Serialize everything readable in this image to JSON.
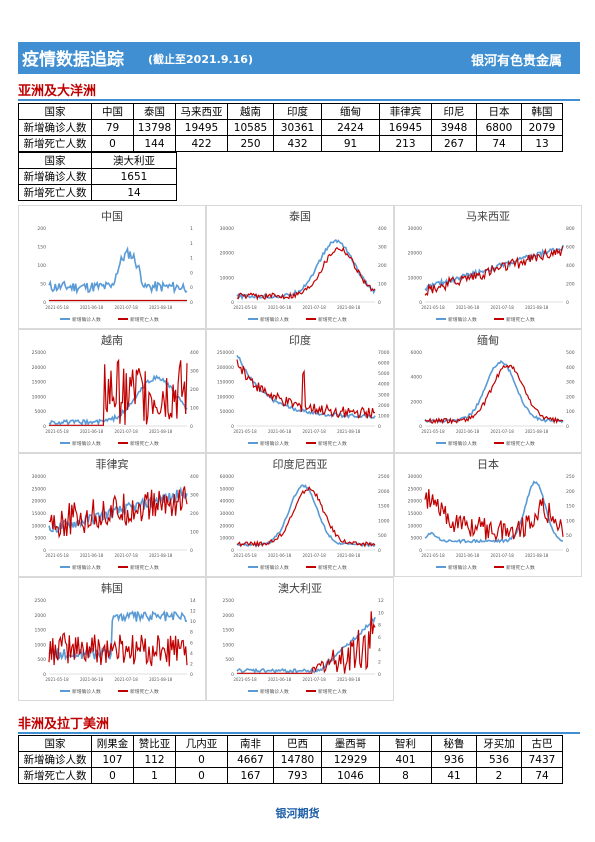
{
  "header": {
    "title": "疫情数据追踪",
    "date": "(截止至2021.9.16)",
    "brand": "银河有色贵金属"
  },
  "asia": {
    "section_title": "亚洲及大洋洲",
    "row_labels": [
      "国家",
      "新增确诊人数",
      "新增死亡人数"
    ],
    "countries": [
      "中国",
      "泰国",
      "马来西亚",
      "越南",
      "印度",
      "缅甸",
      "菲律宾",
      "印尼",
      "日本",
      "韩国"
    ],
    "cases": [
      "79",
      "13798",
      "19495",
      "10585",
      "30361",
      "2424",
      "16945",
      "3948",
      "6800",
      "2079"
    ],
    "deaths": [
      "0",
      "144",
      "422",
      "250",
      "432",
      "91",
      "213",
      "267",
      "74",
      "13"
    ],
    "extra": {
      "country": "澳大利亚",
      "cases": "1651",
      "deaths": "14"
    }
  },
  "charts": [
    {
      "title": "中国",
      "y1": [
        "200",
        "150",
        "100",
        "50",
        "0"
      ],
      "y2": [
        "1",
        "1",
        "1",
        "0",
        "0",
        "0"
      ],
      "x": [
        "2021-05-18",
        "2021-06-18",
        "2021-07-18",
        "2021-08-18"
      ]
    },
    {
      "title": "泰国",
      "y1": [
        "30000",
        "20000",
        "10000",
        "0"
      ],
      "y2": [
        "400",
        "300",
        "200",
        "100",
        "0"
      ],
      "x": [
        "2021-05-18",
        "2021-06-18",
        "2021-07-18",
        "2021-08-18"
      ]
    },
    {
      "title": "马来西亚",
      "y1": [
        "30000",
        "20000",
        "10000",
        "0"
      ],
      "y2": [
        "800",
        "600",
        "400",
        "200",
        "0"
      ],
      "x": [
        "2021-05-18",
        "2021-06-18",
        "2021-07-18",
        "2021-08-18"
      ]
    },
    {
      "title": "越南",
      "y1": [
        "25000",
        "20000",
        "15000",
        "10000",
        "5000",
        "0"
      ],
      "y2": [
        "400",
        "300",
        "200",
        "100",
        "0"
      ],
      "x": [
        "2021-05-18",
        "2021-06-18",
        "2021-07-18",
        "2021-08-18"
      ]
    },
    {
      "title": "印度",
      "y1": [
        "250000",
        "200000",
        "150000",
        "100000",
        "50000",
        "0"
      ],
      "y2": [
        "7000",
        "6000",
        "5000",
        "4000",
        "3000",
        "2000",
        "1000",
        "0"
      ],
      "x": [
        "2021-05-18",
        "2021-06-18",
        "2021-07-18",
        "2021-08-18"
      ]
    },
    {
      "title": "缅甸",
      "y1": [
        "6000",
        "4000",
        "2000",
        "0"
      ],
      "y2": [
        "500",
        "400",
        "300",
        "200",
        "100",
        "0"
      ],
      "x": [
        "2021-05-18",
        "2021-06-18",
        "2021-07-18",
        "2021-08-18"
      ]
    },
    {
      "title": "菲律宾",
      "y1": [
        "30000",
        "25000",
        "20000",
        "15000",
        "10000",
        "5000",
        "0"
      ],
      "y2": [
        "400",
        "300",
        "200",
        "100",
        "0"
      ],
      "x": [
        "2021-05-18",
        "2021-06-18",
        "2021-07-18",
        "2021-08-18"
      ]
    },
    {
      "title": "印度尼西亚",
      "y1": [
        "60000",
        "50000",
        "40000",
        "30000",
        "20000",
        "10000",
        "0"
      ],
      "y2": [
        "2500",
        "2000",
        "1500",
        "1000",
        "500",
        "0"
      ],
      "x": [
        "2021-05-18",
        "2021-06-18",
        "2021-07-18",
        "2021-08-18"
      ]
    },
    {
      "title": "日本",
      "y1": [
        "30000",
        "25000",
        "20000",
        "15000",
        "10000",
        "5000",
        "0"
      ],
      "y2": [
        "250",
        "200",
        "150",
        "100",
        "50",
        "0"
      ],
      "x": [
        "2021-05-18",
        "2021-06-18",
        "2021-07-18",
        "2021-08-18"
      ]
    },
    {
      "title": "韩国",
      "y1": [
        "2500",
        "2000",
        "1500",
        "1000",
        "500",
        "0"
      ],
      "y2": [
        "14",
        "12",
        "10",
        "8",
        "6",
        "4",
        "2",
        "0"
      ],
      "x": [
        "2021-05-18",
        "2021-06-18",
        "2021-07-18",
        "2021-08-18"
      ]
    },
    {
      "title": "澳大利亚",
      "y1": [
        "2500",
        "2000",
        "1500",
        "1000",
        "500",
        "0"
      ],
      "y2": [
        "12",
        "10",
        "8",
        "6",
        "4",
        "2",
        "0"
      ],
      "x": [
        "2021-05-18",
        "2021-06-18",
        "2021-07-18",
        "2021-08-18"
      ]
    }
  ],
  "legend": {
    "cases": "新增确诊人数",
    "deaths": "新增死亡人数"
  },
  "colors": {
    "cases": "#5b9bd5",
    "deaths": "#c00000",
    "banner": "#3f8fd2"
  },
  "africa": {
    "section_title": "非洲及拉丁美洲",
    "row_labels": [
      "国家",
      "新增确诊人数",
      "新增死亡人数"
    ],
    "countries": [
      "刚果金",
      "赞比亚",
      "几内亚",
      "南非",
      "巴西",
      "墨西哥",
      "智利",
      "秘鲁",
      "牙买加",
      "古巴"
    ],
    "cases": [
      "107",
      "112",
      "0",
      "4667",
      "14780",
      "12929",
      "401",
      "936",
      "536",
      "7437"
    ],
    "deaths": [
      "0",
      "1",
      "0",
      "167",
      "793",
      "1046",
      "8",
      "41",
      "2",
      "74"
    ]
  },
  "footer": "银河期货"
}
